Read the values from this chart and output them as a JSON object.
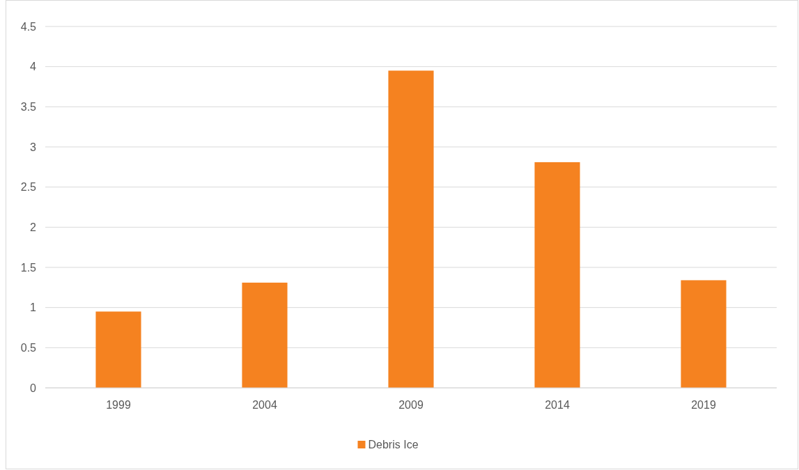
{
  "chart_data": {
    "type": "bar",
    "categories": [
      "1999",
      "2004",
      "2009",
      "2014",
      "2019"
    ],
    "series": [
      {
        "name": "Debris Ice",
        "color": "#f58220",
        "values": [
          0.95,
          1.31,
          3.95,
          2.81,
          1.34
        ]
      }
    ],
    "ylim": [
      0,
      4.5
    ],
    "yticks": [
      0,
      0.5,
      1,
      1.5,
      2,
      2.5,
      3,
      3.5,
      4,
      4.5
    ],
    "grid": "y",
    "legend": "bottom"
  }
}
